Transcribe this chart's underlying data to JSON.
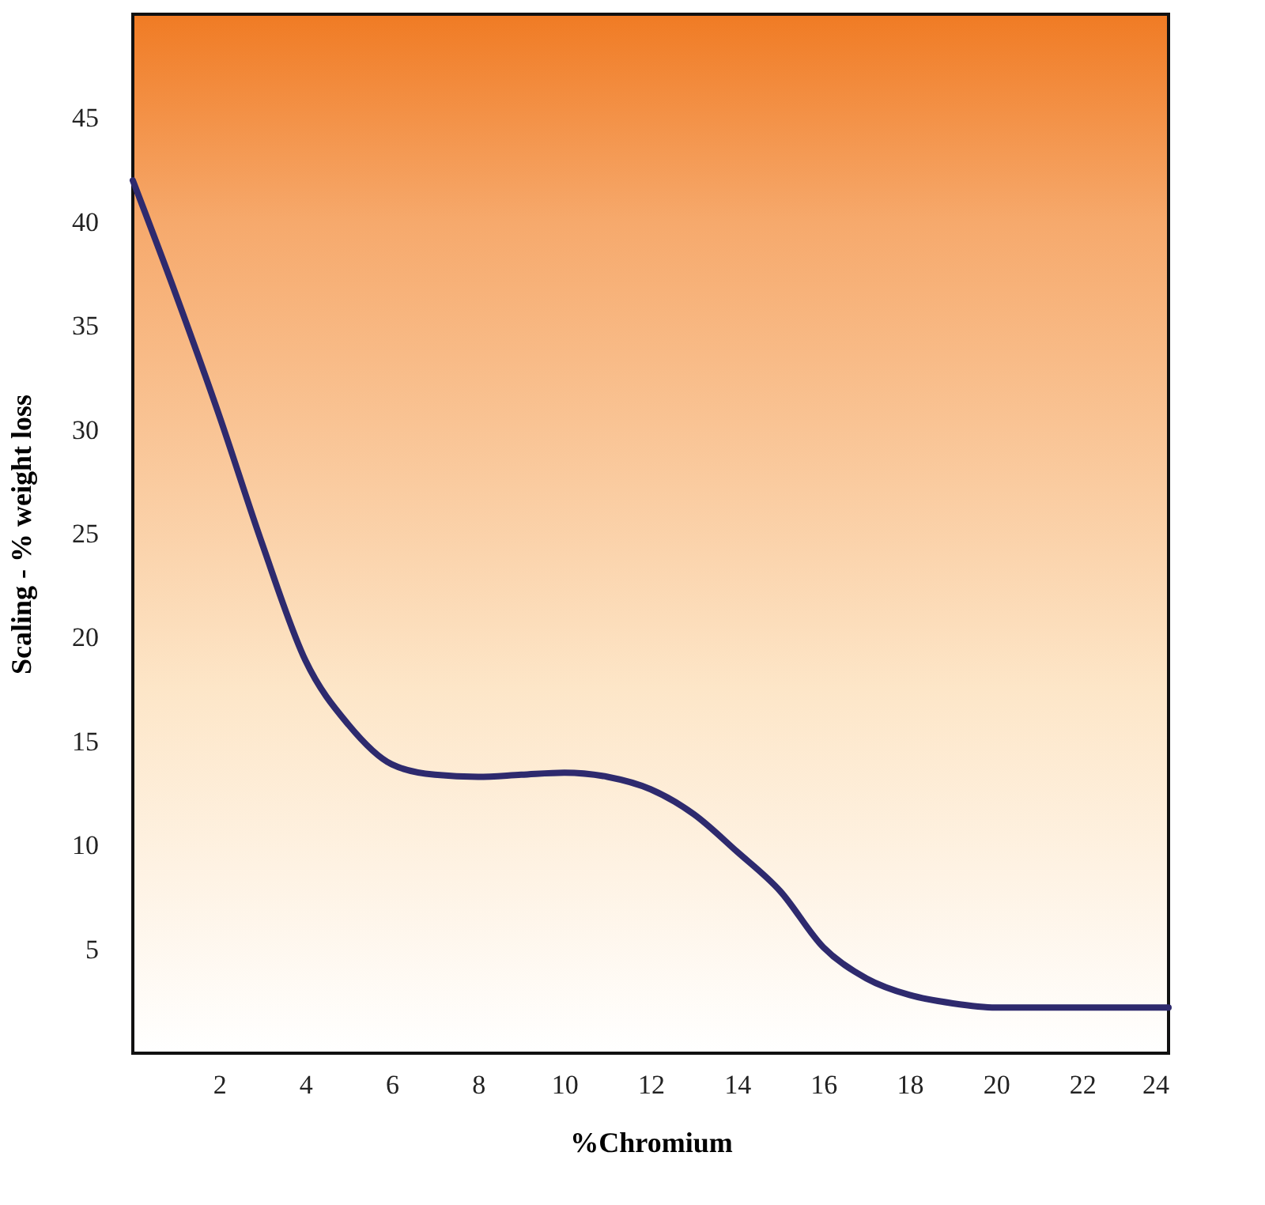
{
  "chart_data": {
    "type": "line",
    "xlabel": "%Chromium",
    "ylabel": "Scaling - % weight loss",
    "x": [
      0,
      1,
      2,
      3,
      4,
      5,
      6,
      7,
      8,
      9,
      10,
      11,
      12,
      13,
      14,
      15,
      16,
      17,
      18,
      19,
      20,
      21,
      22,
      23,
      24
    ],
    "series": [
      {
        "color": "#2e2a6e",
        "values": [
          42,
          36.5,
          30.7,
          24.5,
          18.9,
          15.8,
          13.9,
          13.4,
          13.3,
          13.4,
          13.5,
          13.3,
          12.7,
          11.5,
          9.7,
          7.8,
          5.1,
          3.6,
          2.8,
          2.4,
          2.2,
          2.2,
          2.2,
          2.2,
          2.2
        ]
      }
    ],
    "xlim": [
      0,
      24
    ],
    "xticks": [
      2,
      4,
      6,
      8,
      10,
      12,
      14,
      16,
      18,
      20,
      22,
      24
    ],
    "ylim": [
      0,
      50
    ],
    "yticks": [
      5,
      10,
      15,
      20,
      25,
      30,
      35,
      40,
      45
    ],
    "marker": "none",
    "line_style": "solid"
  }
}
